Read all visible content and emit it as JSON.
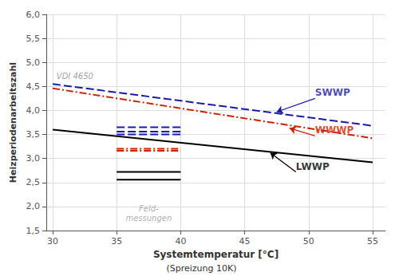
{
  "chart_data": {
    "type": "line",
    "xlabel": "Systemtemperatur [°C]",
    "subtitle": "(Spreizung 10K)",
    "ylabel": "Heizperiodenarbeitszahl",
    "xlim": [
      29.5,
      56
    ],
    "ylim": [
      1.5,
      6.0
    ],
    "xticks": [
      30,
      35,
      40,
      45,
      50,
      55
    ],
    "yticks": [
      {
        "value": 1.5,
        "label": "1,5"
      },
      {
        "value": 2.0,
        "label": "2,0"
      },
      {
        "value": 2.5,
        "label": "2,5"
      },
      {
        "value": 3.0,
        "label": "3,0"
      },
      {
        "value": 3.5,
        "label": "3,5"
      },
      {
        "value": 4.0,
        "label": "4,0"
      },
      {
        "value": 4.5,
        "label": "4,5"
      },
      {
        "value": 5.0,
        "label": "5,0"
      },
      {
        "value": 5.5,
        "label": "5,5"
      },
      {
        "value": 6.0,
        "label": "6,0"
      }
    ],
    "grid": true,
    "series": [
      {
        "color": "#1a1aaa",
        "line_style": "dashed",
        "x": [
          30,
          55
        ],
        "values": [
          4.55,
          3.68
        ]
      },
      {
        "color": "#cc2200",
        "line_style": "dashdot",
        "x": [
          30,
          55
        ],
        "values": [
          4.46,
          3.42
        ]
      },
      {
        "color": "#000000",
        "line_style": "solid",
        "x": [
          30,
          55
        ],
        "values": [
          3.6,
          2.92
        ]
      },
      {
        "color": "#1a1aaa",
        "line_style": "dashed",
        "x": [
          35,
          40
        ],
        "values": [
          3.65,
          3.65
        ]
      },
      {
        "color": "#1a1aaa",
        "line_style": "dashed",
        "x": [
          35,
          40
        ],
        "values": [
          3.56,
          3.56
        ]
      },
      {
        "color": "#1a1aaa",
        "line_style": "dashed",
        "x": [
          35,
          40
        ],
        "values": [
          3.5,
          3.5
        ]
      },
      {
        "color": "#cc2200",
        "line_style": "dashdot",
        "x": [
          35,
          40
        ],
        "values": [
          3.2,
          3.2
        ]
      },
      {
        "color": "#cc2200",
        "line_style": "dashdot",
        "x": [
          35,
          40
        ],
        "values": [
          3.16,
          3.16
        ]
      },
      {
        "color": "#000000",
        "line_style": "solid",
        "x": [
          35,
          40
        ],
        "values": [
          2.72,
          2.72
        ]
      },
      {
        "color": "#000000",
        "line_style": "solid",
        "x": [
          35,
          40
        ],
        "values": [
          2.56,
          2.56
        ]
      }
    ],
    "annotations": [
      {
        "text": "VDI 4650",
        "x": 30.3,
        "y": 4.62,
        "color": "#888888"
      },
      {
        "text": "SWWP",
        "x": 50.5,
        "y": 4.25,
        "arrow_to": [
          47.5,
          3.97
        ],
        "color": "#1a1aaa"
      },
      {
        "text": "WWWP",
        "x": 50.5,
        "y": 3.47,
        "arrow_to": [
          48.5,
          3.63
        ],
        "color": "#cc2200"
      },
      {
        "text": "LWWP",
        "x": 49.0,
        "y": 2.72,
        "arrow_to": [
          47.0,
          3.12
        ],
        "color": "#000000"
      },
      {
        "text": "Feld-\nmessungen",
        "x": 37.5,
        "y": 2.05,
        "color": "#999999"
      }
    ]
  }
}
